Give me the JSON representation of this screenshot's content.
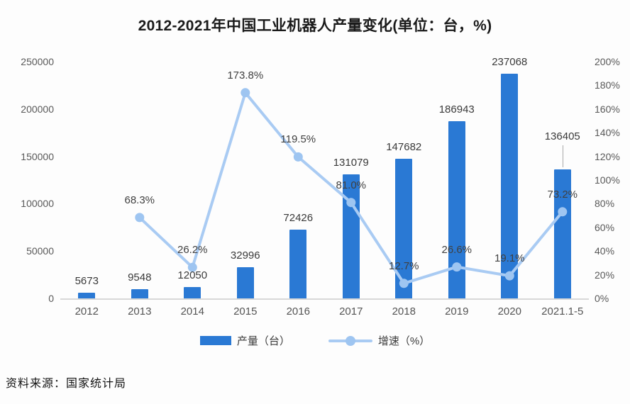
{
  "chart_data": {
    "type": "bar+line",
    "title": "2012-2021年中国工业机器人产量变化(单位：台，%)",
    "categories": [
      "2012",
      "2013",
      "2014",
      "2015",
      "2016",
      "2017",
      "2018",
      "2019",
      "2020",
      "2021.1-5"
    ],
    "series": [
      {
        "name": "产量（台）",
        "type": "bar",
        "axis": "left",
        "color": "#2a79d4",
        "values": [
          5673,
          9548,
          12050,
          32996,
          72426,
          131079,
          147682,
          186943,
          237068,
          136405
        ],
        "labels": [
          "5673",
          "9548",
          "12050",
          "32996",
          "72426",
          "131079",
          "147682",
          "186943",
          "237068",
          "136405"
        ]
      },
      {
        "name": "增速（%）",
        "type": "line",
        "axis": "right",
        "color": "#a9cbf3",
        "marker_color": "#9ec5f1",
        "values": [
          null,
          68.3,
          26.2,
          173.8,
          119.5,
          81.0,
          12.7,
          26.6,
          19.1,
          73.2
        ],
        "labels": [
          null,
          "68.3%",
          "26.2%",
          "173.8%",
          "119.5%",
          "81.0%",
          "12.7%",
          "26.6%",
          "19.1%",
          "73.2%"
        ]
      }
    ],
    "left_axis": {
      "min": 0,
      "max": 250000,
      "ticks": [
        0,
        50000,
        100000,
        150000,
        200000,
        250000
      ]
    },
    "right_axis": {
      "min": 0,
      "max": 200,
      "ticks": [
        0,
        20,
        40,
        60,
        80,
        100,
        120,
        140,
        160,
        180,
        200
      ],
      "suffix": "%"
    },
    "grid": false,
    "legend_position": "bottom",
    "label_callout_category": "2021.1-5"
  },
  "legend": {
    "items": [
      {
        "label": "产量（台）",
        "swatch": "bar"
      },
      {
        "label": "增速（%）",
        "swatch": "line"
      }
    ]
  },
  "footer": {
    "source": "资料来源：国家统计局"
  }
}
